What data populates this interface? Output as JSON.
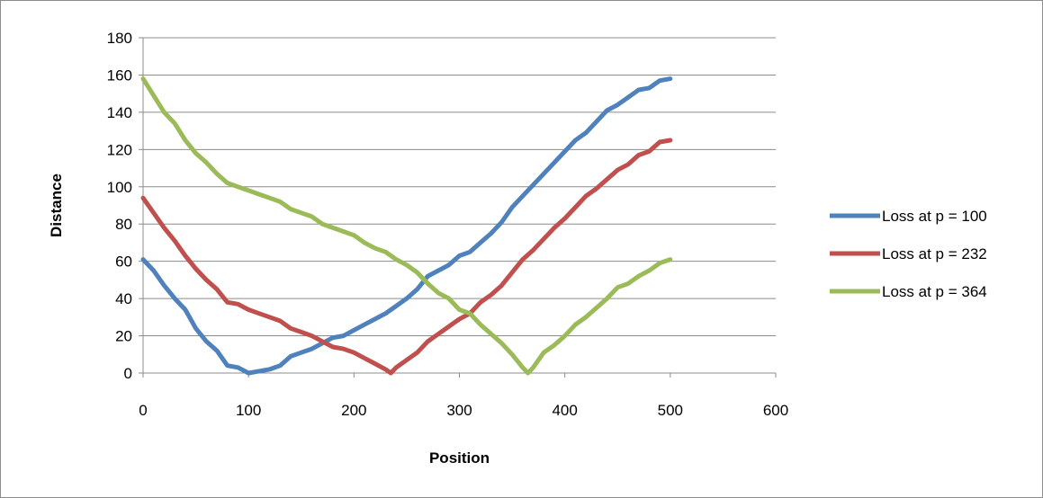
{
  "chart_data": {
    "type": "line",
    "title": "",
    "xlabel": "Position",
    "ylabel": "Distance",
    "xlim": [
      0,
      600
    ],
    "ylim": [
      0,
      180
    ],
    "x_ticks": [
      0,
      100,
      200,
      300,
      400,
      500,
      600
    ],
    "y_ticks": [
      0,
      20,
      40,
      60,
      80,
      100,
      120,
      140,
      160,
      180
    ],
    "grid": "horizontal",
    "legend_position": "right",
    "series": [
      {
        "name": "Loss at p = 100",
        "color": "#4F81BD",
        "points": [
          [
            0,
            61
          ],
          [
            10,
            55
          ],
          [
            20,
            47
          ],
          [
            30,
            40
          ],
          [
            40,
            34
          ],
          [
            50,
            24
          ],
          [
            60,
            17
          ],
          [
            70,
            12
          ],
          [
            80,
            4
          ],
          [
            90,
            3
          ],
          [
            100,
            0
          ],
          [
            110,
            1
          ],
          [
            120,
            2
          ],
          [
            130,
            4
          ],
          [
            140,
            9
          ],
          [
            150,
            11
          ],
          [
            160,
            13
          ],
          [
            170,
            16
          ],
          [
            180,
            19
          ],
          [
            190,
            20
          ],
          [
            200,
            23
          ],
          [
            210,
            26
          ],
          [
            220,
            29
          ],
          [
            230,
            32
          ],
          [
            240,
            36
          ],
          [
            250,
            40
          ],
          [
            260,
            45
          ],
          [
            270,
            52
          ],
          [
            280,
            55
          ],
          [
            290,
            58
          ],
          [
            300,
            63
          ],
          [
            310,
            65
          ],
          [
            320,
            70
          ],
          [
            330,
            75
          ],
          [
            340,
            81
          ],
          [
            350,
            89
          ],
          [
            360,
            95
          ],
          [
            370,
            101
          ],
          [
            380,
            107
          ],
          [
            390,
            113
          ],
          [
            400,
            119
          ],
          [
            410,
            125
          ],
          [
            420,
            129
          ],
          [
            430,
            135
          ],
          [
            440,
            141
          ],
          [
            450,
            144
          ],
          [
            460,
            148
          ],
          [
            470,
            152
          ],
          [
            480,
            153
          ],
          [
            490,
            157
          ],
          [
            500,
            158
          ]
        ]
      },
      {
        "name": "Loss at p = 232",
        "color": "#C0504D",
        "points": [
          [
            0,
            94
          ],
          [
            10,
            86
          ],
          [
            20,
            78
          ],
          [
            30,
            71
          ],
          [
            40,
            63
          ],
          [
            50,
            56
          ],
          [
            60,
            50
          ],
          [
            70,
            45
          ],
          [
            80,
            38
          ],
          [
            90,
            37
          ],
          [
            100,
            34
          ],
          [
            110,
            32
          ],
          [
            120,
            30
          ],
          [
            130,
            28
          ],
          [
            140,
            24
          ],
          [
            150,
            22
          ],
          [
            160,
            20
          ],
          [
            170,
            17
          ],
          [
            180,
            14
          ],
          [
            190,
            13
          ],
          [
            200,
            11
          ],
          [
            210,
            8
          ],
          [
            220,
            5
          ],
          [
            230,
            2
          ],
          [
            235,
            0
          ],
          [
            240,
            3
          ],
          [
            250,
            7
          ],
          [
            260,
            11
          ],
          [
            270,
            17
          ],
          [
            280,
            21
          ],
          [
            290,
            25
          ],
          [
            300,
            29
          ],
          [
            310,
            32
          ],
          [
            320,
            38
          ],
          [
            330,
            42
          ],
          [
            340,
            47
          ],
          [
            350,
            54
          ],
          [
            360,
            61
          ],
          [
            370,
            66
          ],
          [
            380,
            72
          ],
          [
            390,
            78
          ],
          [
            400,
            83
          ],
          [
            410,
            89
          ],
          [
            420,
            95
          ],
          [
            430,
            99
          ],
          [
            440,
            104
          ],
          [
            450,
            109
          ],
          [
            460,
            112
          ],
          [
            470,
            117
          ],
          [
            480,
            119
          ],
          [
            490,
            124
          ],
          [
            500,
            125
          ]
        ]
      },
      {
        "name": "Loss at p = 364",
        "color": "#9BBB59",
        "points": [
          [
            0,
            158
          ],
          [
            10,
            149
          ],
          [
            20,
            140
          ],
          [
            30,
            134
          ],
          [
            40,
            125
          ],
          [
            50,
            118
          ],
          [
            60,
            113
          ],
          [
            70,
            107
          ],
          [
            80,
            102
          ],
          [
            90,
            100
          ],
          [
            100,
            98
          ],
          [
            110,
            96
          ],
          [
            120,
            94
          ],
          [
            130,
            92
          ],
          [
            140,
            88
          ],
          [
            150,
            86
          ],
          [
            160,
            84
          ],
          [
            170,
            80
          ],
          [
            180,
            78
          ],
          [
            190,
            76
          ],
          [
            200,
            74
          ],
          [
            210,
            70
          ],
          [
            220,
            67
          ],
          [
            230,
            65
          ],
          [
            240,
            61
          ],
          [
            250,
            58
          ],
          [
            260,
            54
          ],
          [
            270,
            48
          ],
          [
            280,
            43
          ],
          [
            290,
            40
          ],
          [
            300,
            34
          ],
          [
            310,
            32
          ],
          [
            320,
            26
          ],
          [
            330,
            21
          ],
          [
            340,
            16
          ],
          [
            350,
            10
          ],
          [
            360,
            3
          ],
          [
            365,
            0
          ],
          [
            370,
            3
          ],
          [
            380,
            11
          ],
          [
            390,
            15
          ],
          [
            400,
            20
          ],
          [
            410,
            26
          ],
          [
            420,
            30
          ],
          [
            430,
            35
          ],
          [
            440,
            40
          ],
          [
            450,
            46
          ],
          [
            460,
            48
          ],
          [
            470,
            52
          ],
          [
            480,
            55
          ],
          [
            490,
            59
          ],
          [
            500,
            61
          ]
        ]
      }
    ]
  }
}
